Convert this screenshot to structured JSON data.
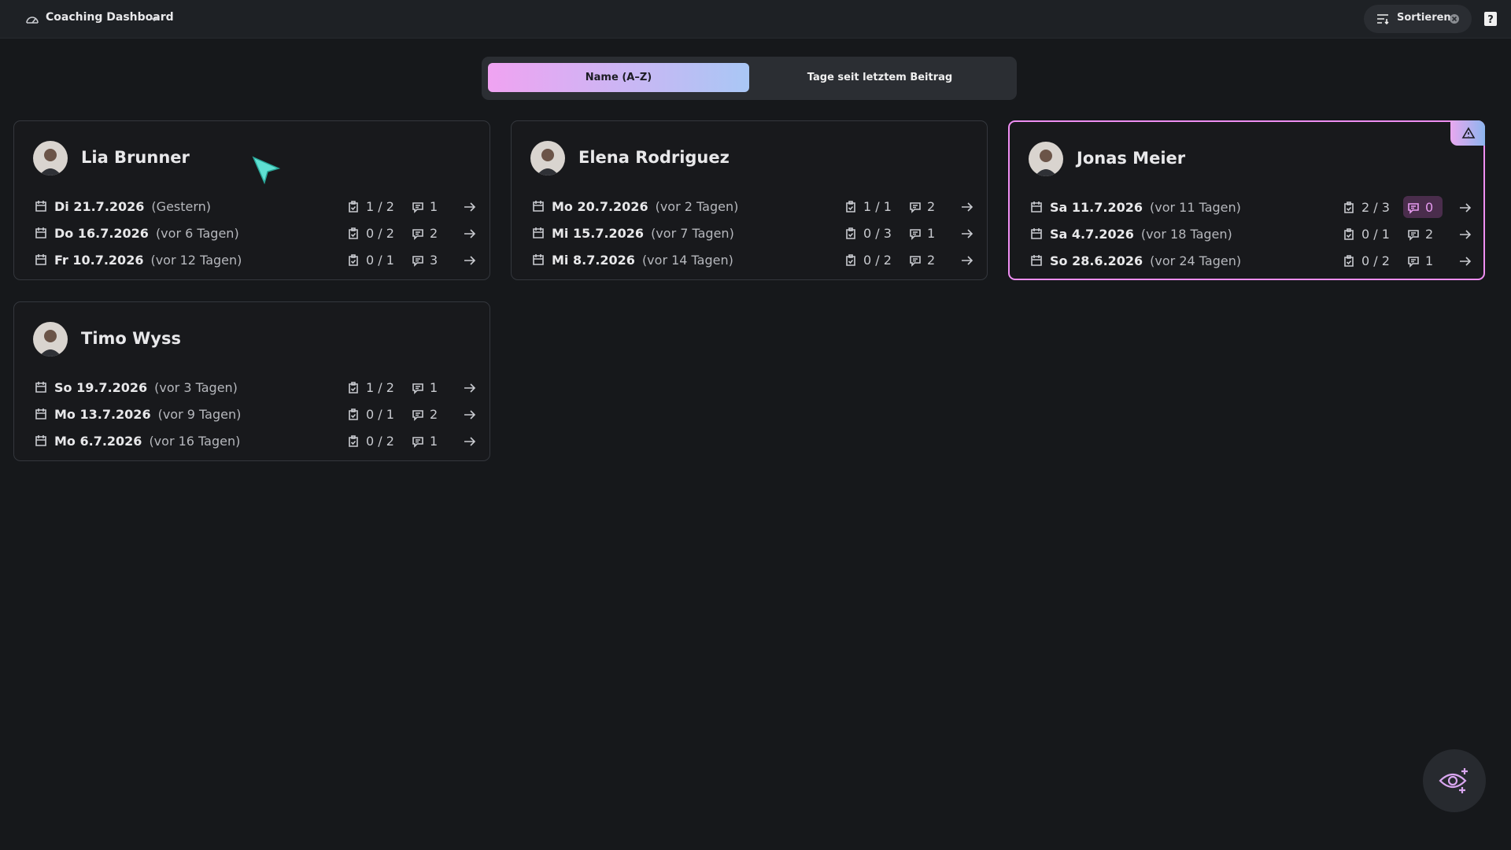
{
  "header": {
    "title": "Coaching Dashboard",
    "sort_button": "Sortieren"
  },
  "sort_tabs": {
    "options": [
      "Name (A–Z)",
      "Tage seit letztem Beitrag"
    ],
    "active": 0
  },
  "cards": [
    {
      "name": "Lia Brunner",
      "alert": false,
      "entries": [
        {
          "date": "Di 21.7.2026",
          "relative": "(Gestern)",
          "tasks": "1 / 2",
          "comments": 1
        },
        {
          "date": "Do 16.7.2026",
          "relative": "(vor 6 Tagen)",
          "tasks": "0 / 2",
          "comments": 2
        },
        {
          "date": "Fr 10.7.2026",
          "relative": "(vor 12 Tagen)",
          "tasks": "0 / 1",
          "comments": 3
        }
      ]
    },
    {
      "name": "Elena Rodriguez",
      "alert": false,
      "entries": [
        {
          "date": "Mo 20.7.2026",
          "relative": "(vor 2 Tagen)",
          "tasks": "1 / 1",
          "comments": 2
        },
        {
          "date": "Mi 15.7.2026",
          "relative": "(vor 7 Tagen)",
          "tasks": "0 / 3",
          "comments": 1
        },
        {
          "date": "Mi 8.7.2026",
          "relative": "(vor 14 Tagen)",
          "tasks": "0 / 2",
          "comments": 2
        }
      ]
    },
    {
      "name": "Jonas Meier",
      "alert": true,
      "entries": [
        {
          "date": "Sa 11.7.2026",
          "relative": "(vor 11 Tagen)",
          "tasks": "2 / 3",
          "comments": 0,
          "highlight": true
        },
        {
          "date": "Sa 4.7.2026",
          "relative": "(vor 18 Tagen)",
          "tasks": "0 / 1",
          "comments": 2
        },
        {
          "date": "So 28.6.2026",
          "relative": "(vor 24 Tagen)",
          "tasks": "0 / 2",
          "comments": 1
        }
      ]
    },
    {
      "name": "Timo Wyss",
      "alert": false,
      "entries": [
        {
          "date": "So 19.7.2026",
          "relative": "(vor 3 Tagen)",
          "tasks": "1 / 2",
          "comments": 1
        },
        {
          "date": "Mo 13.7.2026",
          "relative": "(vor 9 Tagen)",
          "tasks": "0 / 1",
          "comments": 2
        },
        {
          "date": "Mo 6.7.2026",
          "relative": "(vor 16 Tagen)",
          "tasks": "0 / 2",
          "comments": 1
        }
      ]
    }
  ]
}
